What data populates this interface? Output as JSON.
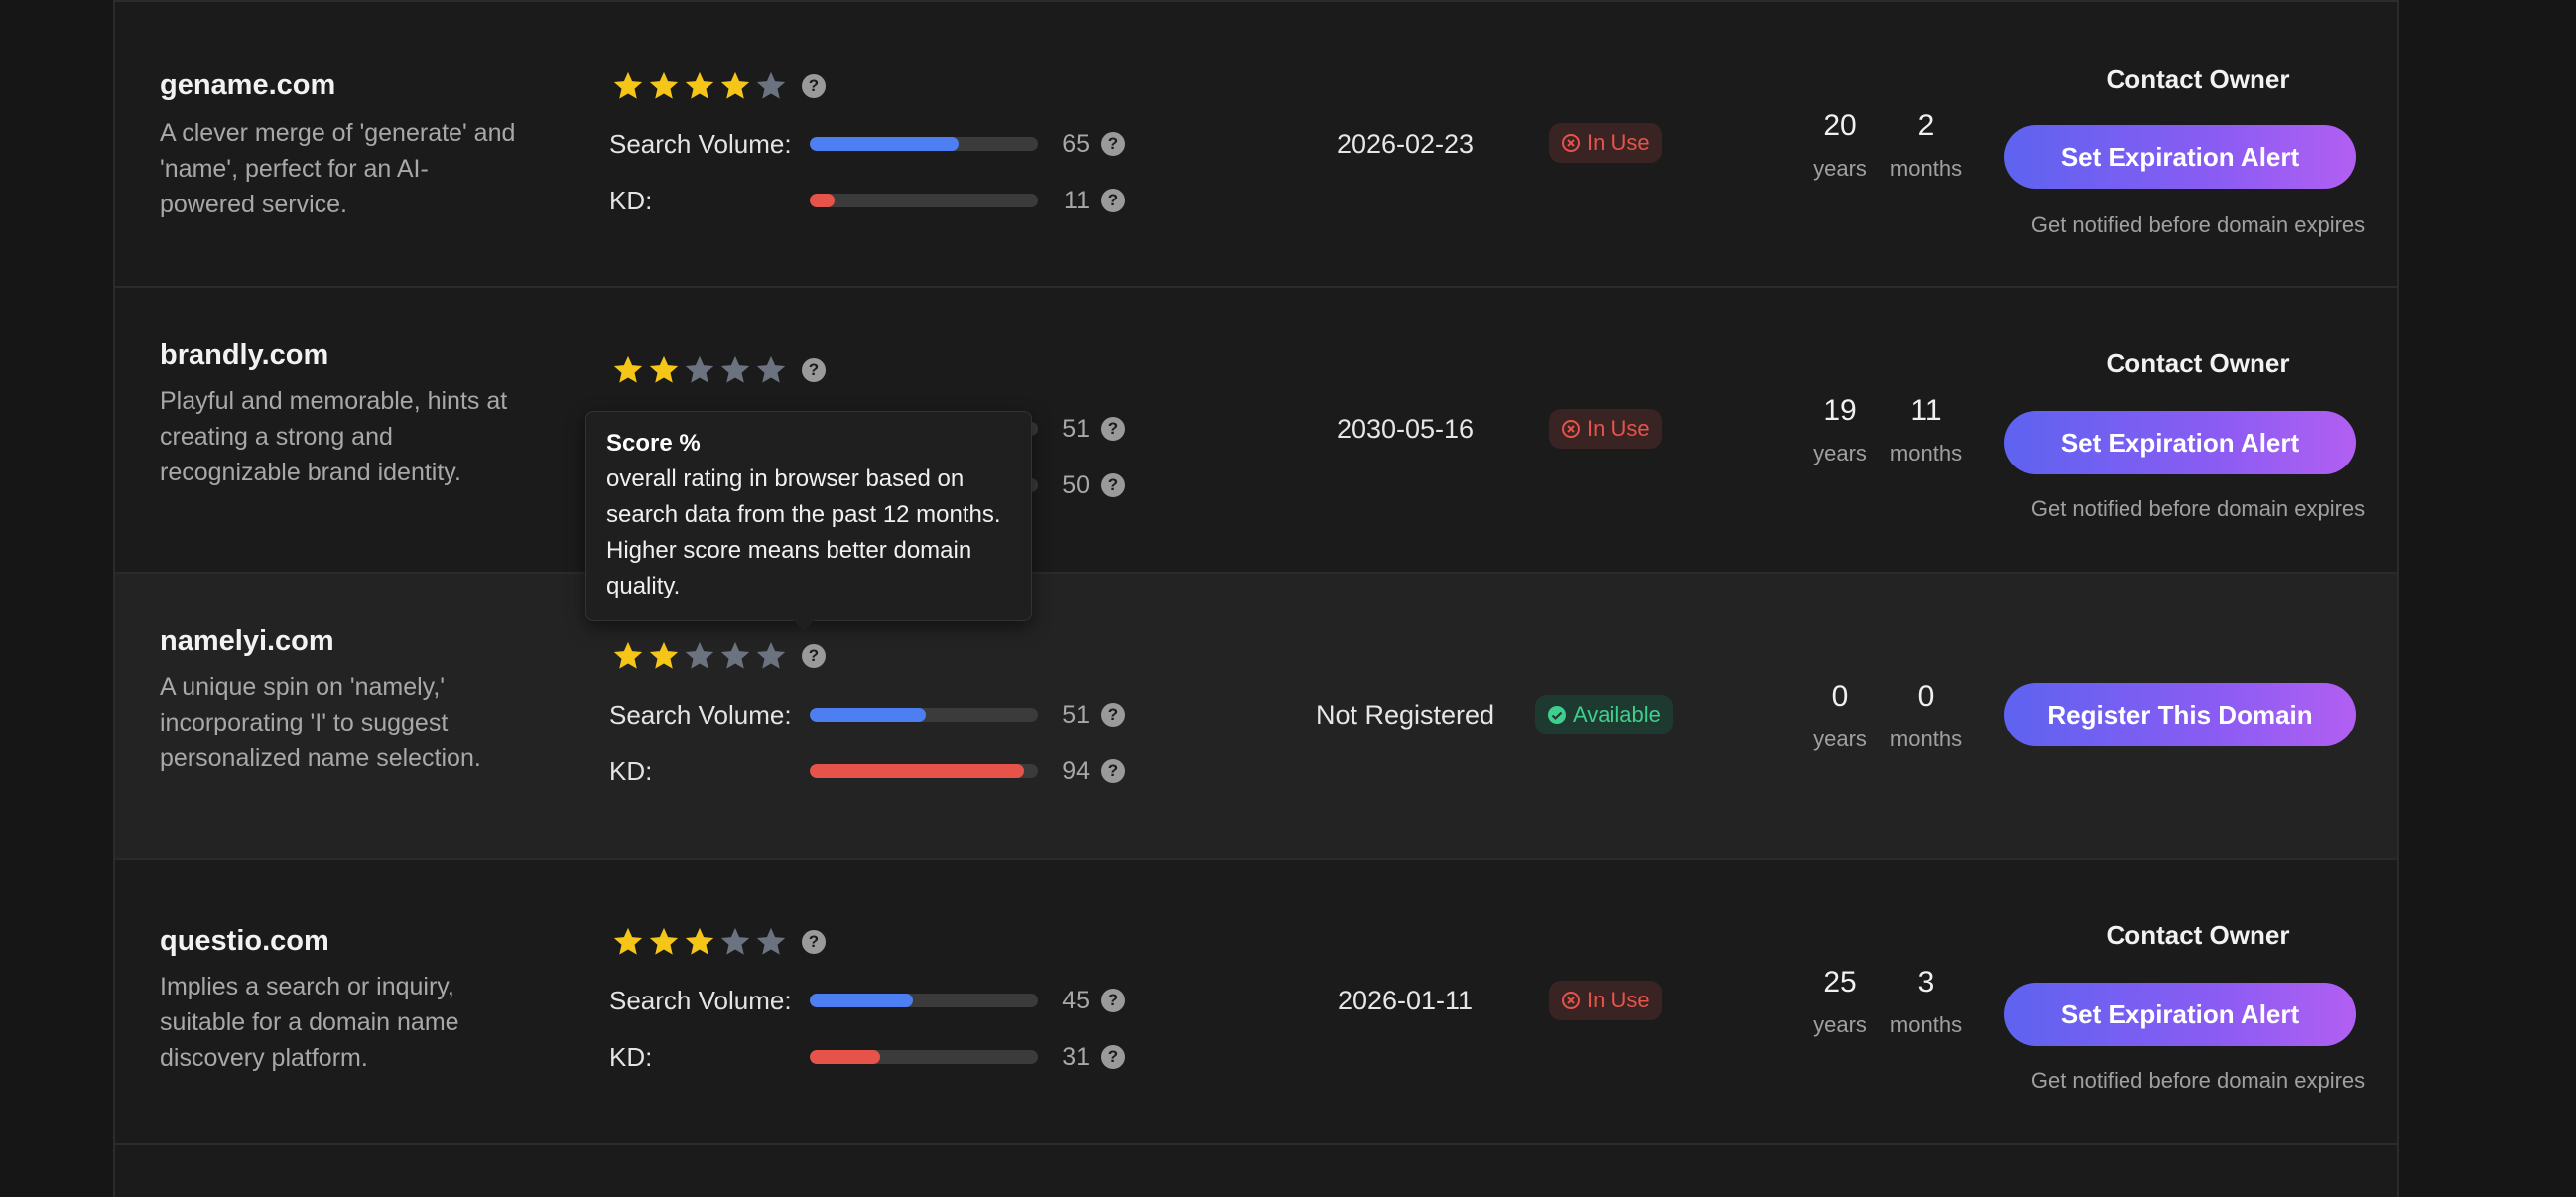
{
  "columns_text": {
    "search_volume_label": "Search Volume:",
    "kd_label": "KD:",
    "years_unit": "years",
    "months_unit": "months",
    "help_glyph": "?"
  },
  "colors": {
    "star_filled": "#f5c518",
    "star_empty": "#6b7280",
    "bar_blue": "#4d7ff2",
    "bar_red": "#e5534b",
    "in_use": "#e5534b",
    "available": "#3ecf8e",
    "button_gradient": [
      "#5e63f0",
      "#b25ff2"
    ]
  },
  "tooltip": {
    "title": "Score %",
    "body": "overall rating in browser based on search data from the past 12 months. Higher score means better domain quality."
  },
  "rows": [
    {
      "domain": "gename.com",
      "description": "A clever merge of 'generate' and 'name', perfect for an AI-powered service.",
      "stars": 4,
      "search_volume": 65,
      "kd": 11,
      "expiry": "2026-02-23",
      "status": "In Use",
      "age_years": "20",
      "age_months": "2",
      "contact": "Contact Owner",
      "action": "Set Expiration Alert",
      "note": "Get notified before domain expires"
    },
    {
      "domain": "brandly.com",
      "description": "Playful and memorable, hints at creating a strong and recognizable brand identity.",
      "stars": 2,
      "search_volume": 51,
      "kd": 50,
      "expiry": "2030-05-16",
      "status": "In Use",
      "age_years": "19",
      "age_months": "11",
      "contact": "Contact Owner",
      "action": "Set Expiration Alert",
      "note": "Get notified before domain expires"
    },
    {
      "domain": "namelyi.com",
      "description": "A unique spin on 'namely,' incorporating 'I' to suggest personalized name selection.",
      "stars": 2,
      "search_volume": 51,
      "kd": 94,
      "expiry": "Not Registered",
      "status": "Available",
      "age_years": "0",
      "age_months": "0",
      "action": "Register This Domain"
    },
    {
      "domain": "questio.com",
      "description": "Implies a search or inquiry, suitable for a domain name discovery platform.",
      "stars": 3,
      "search_volume": 45,
      "kd": 31,
      "expiry": "2026-01-11",
      "status": "In Use",
      "age_years": "25",
      "age_months": "3",
      "contact": "Contact Owner",
      "action": "Set Expiration Alert",
      "note": "Get notified before domain expires"
    }
  ]
}
